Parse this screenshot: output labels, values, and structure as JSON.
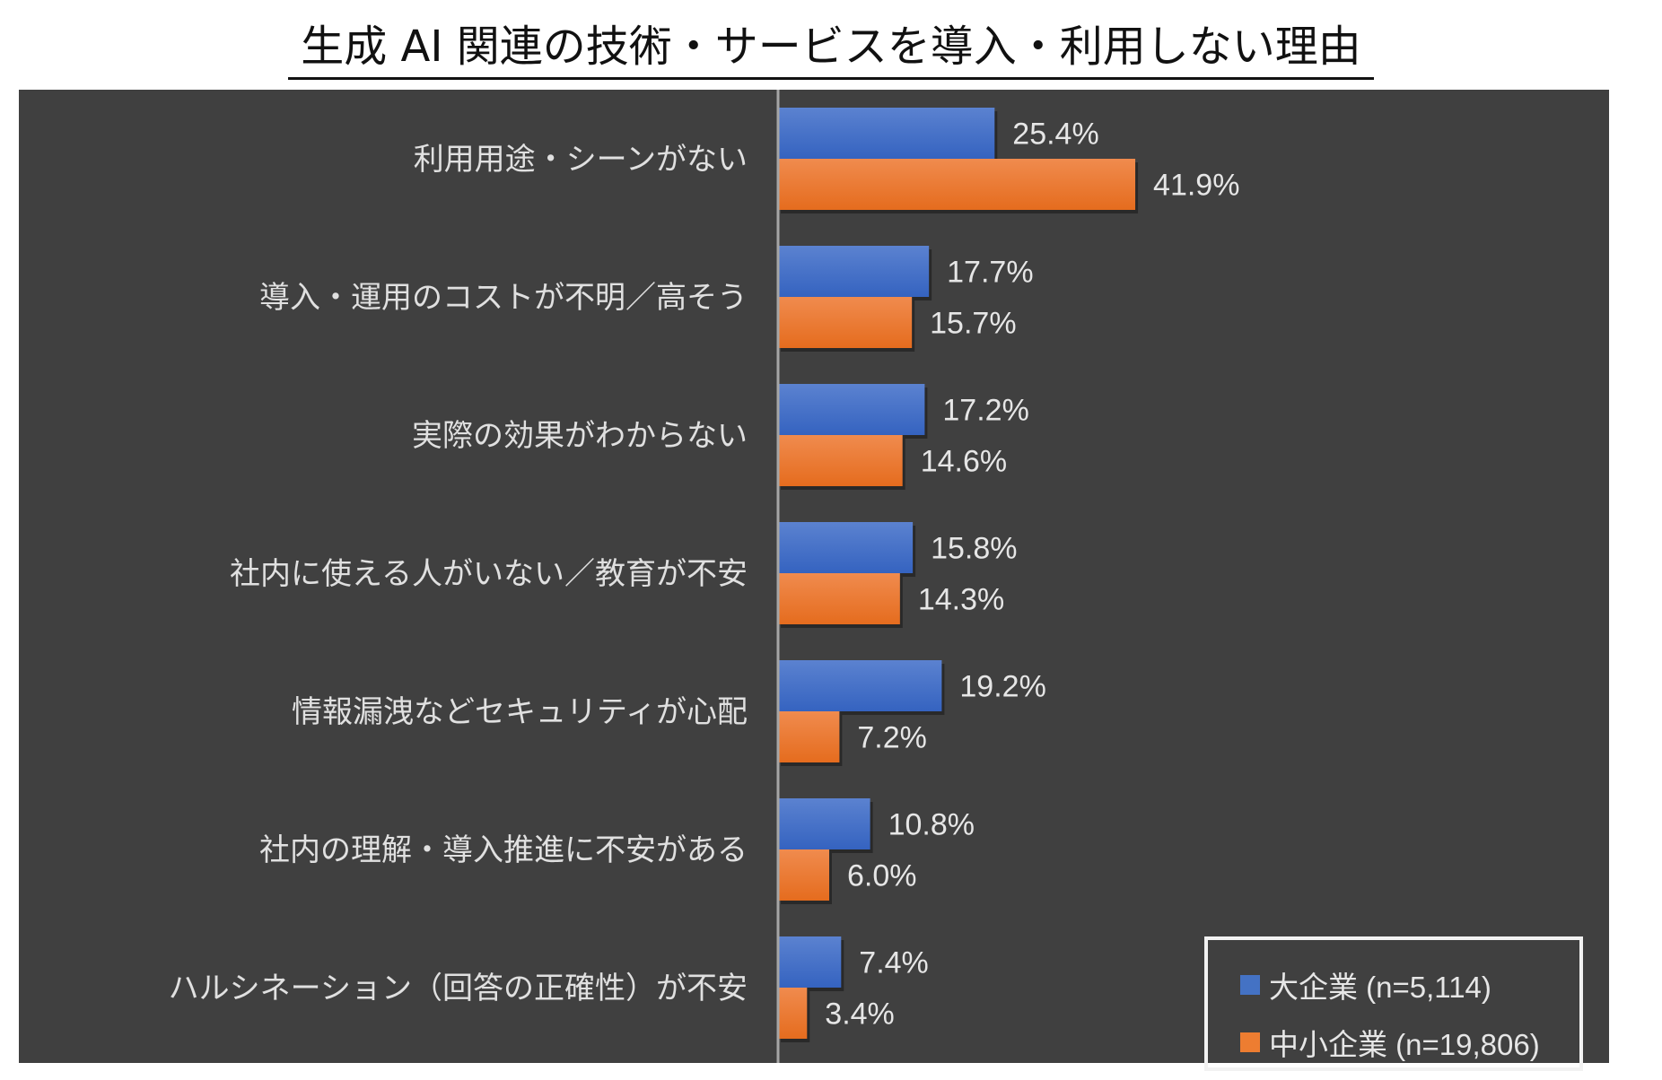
{
  "chart_data": {
    "type": "bar",
    "orientation": "horizontal",
    "title": "生成 AI 関連の技術・サービスを導入・利用しない理由",
    "categories": [
      "利用用途・シーンがない",
      "導入・運用のコストが不明／高そう",
      "実際の効果がわからない",
      "社内に使える人がいない／教育が不安",
      "情報漏洩などセキュリティが心配",
      "社内の理解・導入推進に不安がある",
      "ハルシネーション（回答の正確性）が不安"
    ],
    "series": [
      {
        "name": "大企業 (n=5,114)",
        "color": "#4472c4",
        "values": [
          25.4,
          17.7,
          17.2,
          15.8,
          19.2,
          10.8,
          7.4
        ],
        "labels": [
          "25.4%",
          "17.7%",
          "17.2%",
          "15.8%",
          "19.2%",
          "10.8%",
          "7.4%"
        ]
      },
      {
        "name": "中小企業 (n=19,806)",
        "color": "#ed7d31",
        "values": [
          41.9,
          15.7,
          14.6,
          14.3,
          7.2,
          6.0,
          3.4
        ],
        "labels": [
          "41.9%",
          "15.7%",
          "14.6%",
          "14.3%",
          "7.2%",
          "6.0%",
          "3.4%"
        ]
      }
    ],
    "xlabel": "",
    "ylabel": "",
    "xlim": [
      0,
      45
    ],
    "grid": false,
    "legend_position": "bottom-right"
  }
}
